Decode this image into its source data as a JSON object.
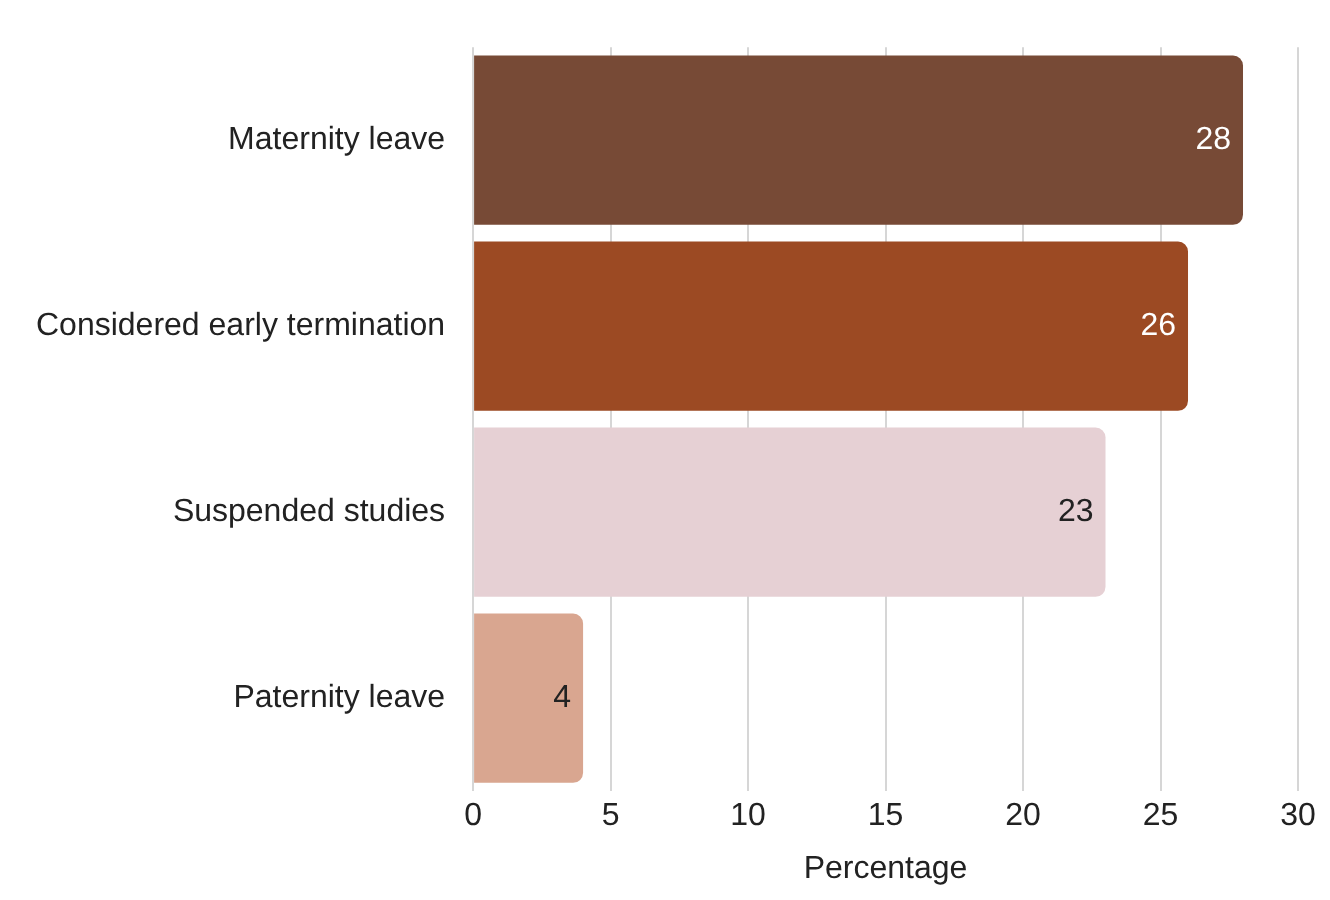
{
  "chart_data": {
    "type": "bar",
    "orientation": "horizontal",
    "xlabel": "Percentage",
    "categories": [
      "Maternity leave",
      "Considered early termination",
      "Suspended studies",
      "Paternity leave"
    ],
    "values": [
      28,
      26,
      23,
      4
    ],
    "colors": [
      "#774a36",
      "#9c4a23",
      "#e6d0d4",
      "#d9a690"
    ],
    "xlim": [
      0,
      30
    ],
    "xticks": [
      0,
      5,
      10,
      15,
      20,
      25,
      30
    ],
    "grid": "x",
    "data_labels": true,
    "legend": false
  }
}
